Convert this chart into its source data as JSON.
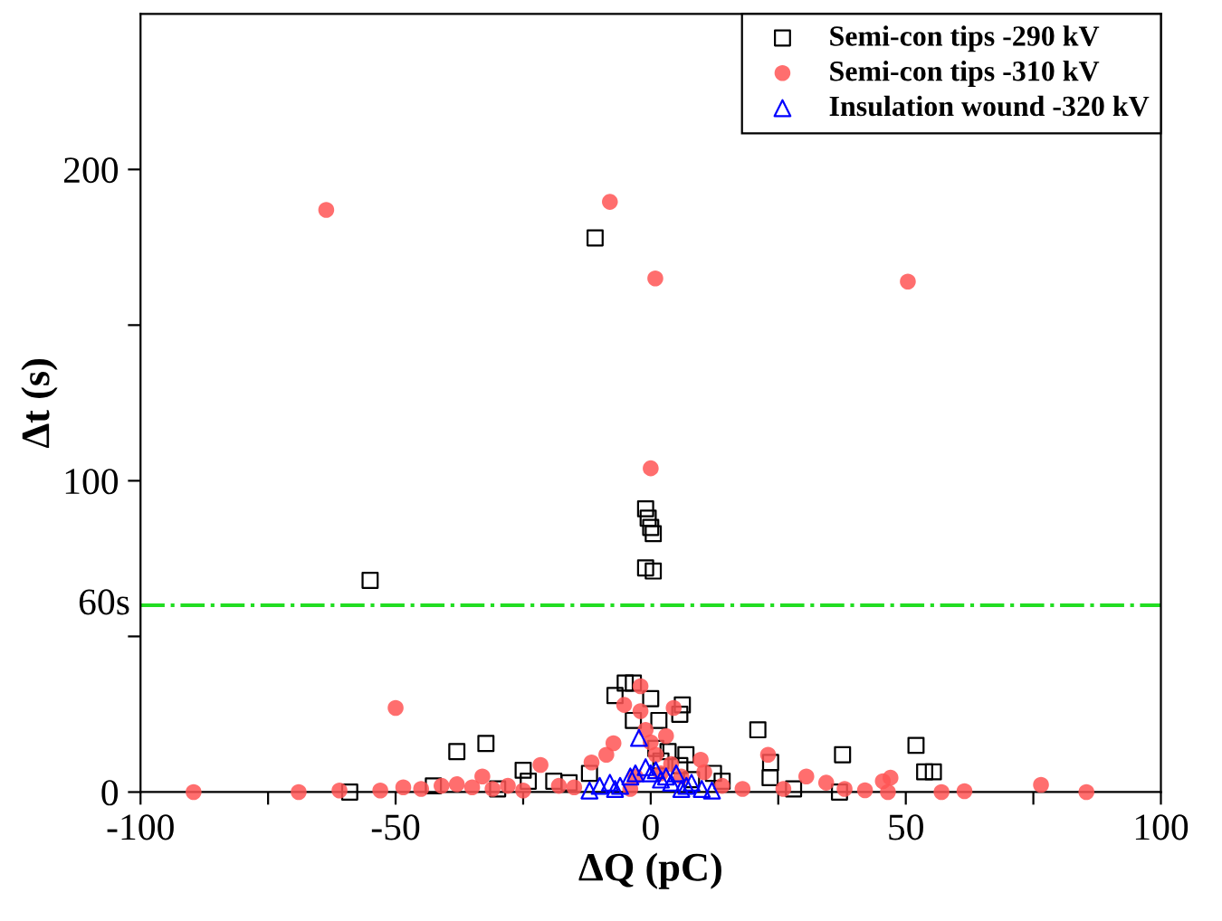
{
  "chart_data": {
    "type": "scatter",
    "xlabel": "ΔQ (pC)",
    "ylabel": "Δt (s)",
    "xlim": [
      -100,
      100
    ],
    "ylim": [
      0,
      250
    ],
    "xticks": [
      -100,
      {
        "value": -75,
        "label": null
      },
      -50,
      {
        "value": -25,
        "label": null
      },
      0,
      {
        "value": 25,
        "label": null
      },
      50,
      {
        "value": 75,
        "label": null
      },
      100
    ],
    "yticks": [
      0,
      {
        "value": 50,
        "label": null
      },
      100,
      {
        "value": 150,
        "label": null
      },
      200
    ],
    "grid": false,
    "legend": "top right",
    "ref_lines": [
      {
        "axis": "y",
        "value": 60,
        "label": "60s",
        "color": "#22dd22",
        "line_style": "dashdot"
      }
    ],
    "series": [
      {
        "name": "Semi-con tips -290 kV",
        "color": "#000000",
        "marker": "square",
        "x": [
          -10.9,
          -55,
          -1,
          -0.5,
          0,
          0.5,
          -1,
          0.5,
          -59,
          -42.6,
          -38,
          -32.3,
          -25,
          -24,
          -19,
          -12,
          -7,
          -5,
          -3.4,
          0,
          -3.4,
          1.6,
          6.2,
          5.7,
          3.4,
          6.9,
          5.7,
          12.3,
          14,
          21,
          23.5,
          23.4,
          37.6,
          37,
          52,
          53.7,
          55.4,
          1,
          2,
          -16,
          8,
          28,
          -30
        ],
        "values": [
          178,
          68,
          91,
          88,
          85,
          83,
          72,
          71,
          0,
          2,
          13,
          15.6,
          7,
          3.5,
          3.5,
          6,
          31,
          35,
          35,
          30,
          23,
          23,
          28,
          25,
          13,
          12,
          8.5,
          6,
          3.5,
          20,
          9.5,
          4.6,
          12,
          0,
          15,
          6.5,
          6.5,
          14,
          10,
          3,
          4,
          1,
          1
        ]
      },
      {
        "name": "Semi-con tips -310 kV",
        "color": "#ff5555",
        "marker": "circle",
        "x": [
          -63.6,
          -8,
          0.9,
          50.4,
          0,
          -50,
          -89.6,
          -69,
          -61,
          -53,
          -48.5,
          -45,
          -41,
          -38,
          -35,
          -33,
          -31,
          -28,
          -25,
          -21.6,
          -18,
          -15,
          -11.6,
          -8.7,
          -7.3,
          -5.2,
          -2,
          4.5,
          -2,
          -1,
          0,
          1,
          2,
          -3,
          3,
          4,
          6,
          9.8,
          10.5,
          14,
          18,
          23,
          26,
          30.5,
          34.4,
          38,
          42,
          45.5,
          47,
          46.5,
          57,
          61.5,
          76.5,
          85.4,
          -4
        ],
        "values": [
          187,
          189.6,
          165,
          164,
          104,
          27,
          0,
          0,
          0.5,
          0.5,
          1.5,
          1,
          2,
          2.5,
          1.5,
          5,
          1,
          2,
          0.5,
          8.7,
          2,
          1.5,
          9.5,
          12,
          15.7,
          28,
          34,
          27,
          26,
          20,
          16,
          12,
          6,
          5,
          18,
          9,
          5,
          10.4,
          6.4,
          2,
          1,
          12,
          1,
          5,
          3,
          1,
          0.6,
          3.5,
          4.6,
          0,
          0,
          0.3,
          2.3,
          0,
          1
        ]
      },
      {
        "name": "Insulation wound -320 kV",
        "color": "#0000ff",
        "marker": "triangle",
        "x": [
          -12,
          -10,
          -8,
          -6,
          -4,
          -3,
          -2.3,
          -1,
          0,
          1,
          2,
          3,
          4,
          5,
          7,
          8,
          10,
          12,
          -7,
          6
        ],
        "values": [
          0.5,
          2,
          3,
          2,
          5,
          6,
          17.4,
          8,
          6,
          7,
          4,
          5,
          3,
          6,
          2,
          3,
          1,
          0.5,
          1,
          1
        ]
      }
    ]
  }
}
